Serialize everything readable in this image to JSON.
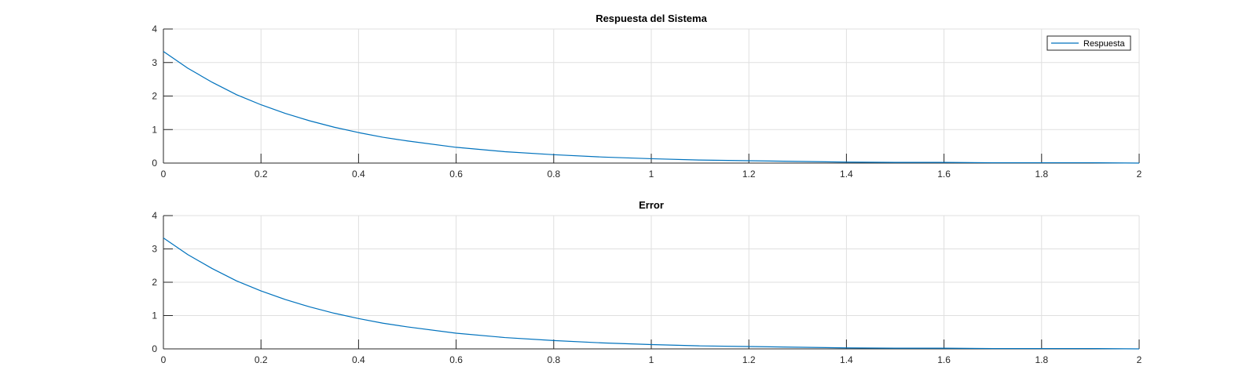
{
  "chart_data": [
    {
      "type": "line",
      "title": "Respuesta del Sistema",
      "xlabel": "",
      "ylabel": "",
      "xlim": [
        0,
        2
      ],
      "ylim": [
        0,
        4
      ],
      "xticks": [
        "0",
        "0.2",
        "0.4",
        "0.6",
        "0.8",
        "1",
        "1.2",
        "1.4",
        "1.6",
        "1.8",
        "2"
      ],
      "yticks": [
        "0",
        "1",
        "2",
        "3",
        "4"
      ],
      "grid": true,
      "legend": {
        "position": "top-right",
        "entries": [
          "Respuesta"
        ]
      },
      "series": [
        {
          "name": "Respuesta",
          "color": "#0072BD",
          "x": [
            0,
            0.05,
            0.1,
            0.15,
            0.2,
            0.25,
            0.3,
            0.35,
            0.4,
            0.45,
            0.5,
            0.6,
            0.7,
            0.8,
            0.9,
            1.0,
            1.1,
            1.2,
            1.3,
            1.4,
            1.5,
            1.6,
            1.7,
            1.8,
            1.9,
            2.0
          ],
          "y": [
            3.33,
            2.83,
            2.41,
            2.04,
            1.74,
            1.48,
            1.26,
            1.07,
            0.91,
            0.77,
            0.66,
            0.47,
            0.34,
            0.25,
            0.18,
            0.13,
            0.09,
            0.07,
            0.05,
            0.03,
            0.02,
            0.02,
            0.01,
            0.01,
            0.01,
            0.0
          ]
        }
      ]
    },
    {
      "type": "line",
      "title": "Error",
      "xlabel": "",
      "ylabel": "",
      "xlim": [
        0,
        2
      ],
      "ylim": [
        0,
        4
      ],
      "xticks": [
        "0",
        "0.2",
        "0.4",
        "0.6",
        "0.8",
        "1",
        "1.2",
        "1.4",
        "1.6",
        "1.8",
        "2"
      ],
      "yticks": [
        "0",
        "1",
        "2",
        "3",
        "4"
      ],
      "grid": true,
      "series": [
        {
          "color": "#0072BD",
          "x": [
            0,
            0.05,
            0.1,
            0.15,
            0.2,
            0.25,
            0.3,
            0.35,
            0.4,
            0.45,
            0.5,
            0.6,
            0.7,
            0.8,
            0.9,
            1.0,
            1.1,
            1.2,
            1.3,
            1.4,
            1.5,
            1.6,
            1.7,
            1.8,
            1.9,
            2.0
          ],
          "y": [
            3.33,
            2.83,
            2.41,
            2.04,
            1.74,
            1.48,
            1.26,
            1.07,
            0.91,
            0.77,
            0.66,
            0.47,
            0.34,
            0.25,
            0.18,
            0.13,
            0.09,
            0.07,
            0.05,
            0.03,
            0.02,
            0.02,
            0.01,
            0.01,
            0.01,
            0.0
          ]
        }
      ]
    }
  ]
}
